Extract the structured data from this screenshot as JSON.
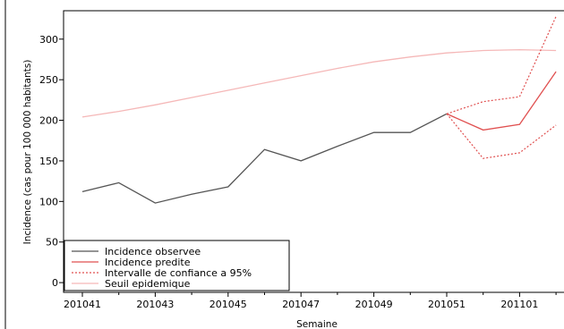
{
  "chart_data": {
    "type": "line",
    "title": "",
    "xlabel": "Semaine",
    "ylabel": "Incidence (cas pour 100 000 habitants)",
    "x_categories": [
      "201041",
      "201042",
      "201043",
      "201044",
      "201045",
      "201046",
      "201047",
      "201048",
      "201049",
      "201050",
      "201051",
      "201052",
      "201101",
      "201102"
    ],
    "x_tick_labels": [
      "201041",
      "201043",
      "201045",
      "201047",
      "201049",
      "201051",
      "201101"
    ],
    "y_ticks": [
      0,
      50,
      100,
      150,
      200,
      250,
      300
    ],
    "ylim": [
      -12,
      335
    ],
    "grid": false,
    "legend_position": "bottom-left",
    "series": [
      {
        "name": "Incidence observee",
        "color": "#555555",
        "style": "solid",
        "x": [
          "201041",
          "201042",
          "201043",
          "201044",
          "201045",
          "201046",
          "201047",
          "201048",
          "201049",
          "201050",
          "201051"
        ],
        "values": [
          112,
          123,
          98,
          109,
          118,
          164,
          150,
          168,
          185,
          185,
          208
        ]
      },
      {
        "name": "Incidence predite",
        "color": "#e05050",
        "style": "solid",
        "x": [
          "201051",
          "201052",
          "201101",
          "201102"
        ],
        "values": [
          208,
          188,
          195,
          260
        ]
      },
      {
        "name": "Intervalle de confiance a 95%",
        "color": "#e05050",
        "style": "dotted",
        "x": [
          "201051",
          "201052",
          "201101",
          "201102"
        ],
        "values": [
          208,
          223,
          229,
          328
        ],
        "values_lower": [
          208,
          153,
          160,
          194
        ]
      },
      {
        "name": "Seuil epidemique",
        "color": "#f5b8b8",
        "style": "solid",
        "x": [
          "201041",
          "201042",
          "201043",
          "201044",
          "201045",
          "201046",
          "201047",
          "201048",
          "201049",
          "201050",
          "201051",
          "201052",
          "201101",
          "201102"
        ],
        "values": [
          204,
          211,
          219,
          228,
          237,
          246,
          255,
          264,
          272,
          278,
          283,
          286,
          287,
          286
        ]
      }
    ]
  }
}
